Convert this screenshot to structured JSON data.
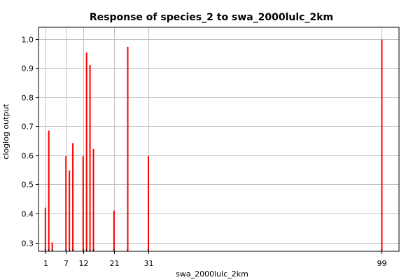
{
  "chart_data": {
    "type": "bar",
    "title": "Response of species_2 to swa_2000lulc_2km",
    "xlabel": "swa_2000lulc_2km",
    "ylabel": "cloglog output",
    "x_ticks": [
      1,
      7,
      12,
      21,
      31,
      99
    ],
    "y_ticks": [
      0.3,
      0.4,
      0.5,
      0.6,
      0.7,
      0.8,
      0.9,
      1.0
    ],
    "y_tick_labels": [
      "0.3",
      "0.4",
      "0.5",
      "0.6",
      "0.7",
      "0.8",
      "0.9",
      "1.0"
    ],
    "xlim": [
      -1,
      104
    ],
    "ylim": [
      0.27,
      1.04
    ],
    "grid": true,
    "series": [
      {
        "color": "#ff0000",
        "x": [
          1,
          2,
          3,
          7,
          8,
          9,
          12,
          13,
          14,
          15,
          21,
          25,
          31,
          99
        ],
        "values": [
          0.42,
          0.685,
          0.3,
          0.597,
          0.548,
          0.642,
          0.597,
          0.953,
          0.91,
          0.622,
          0.41,
          0.973,
          0.597,
          0.998
        ]
      }
    ]
  }
}
